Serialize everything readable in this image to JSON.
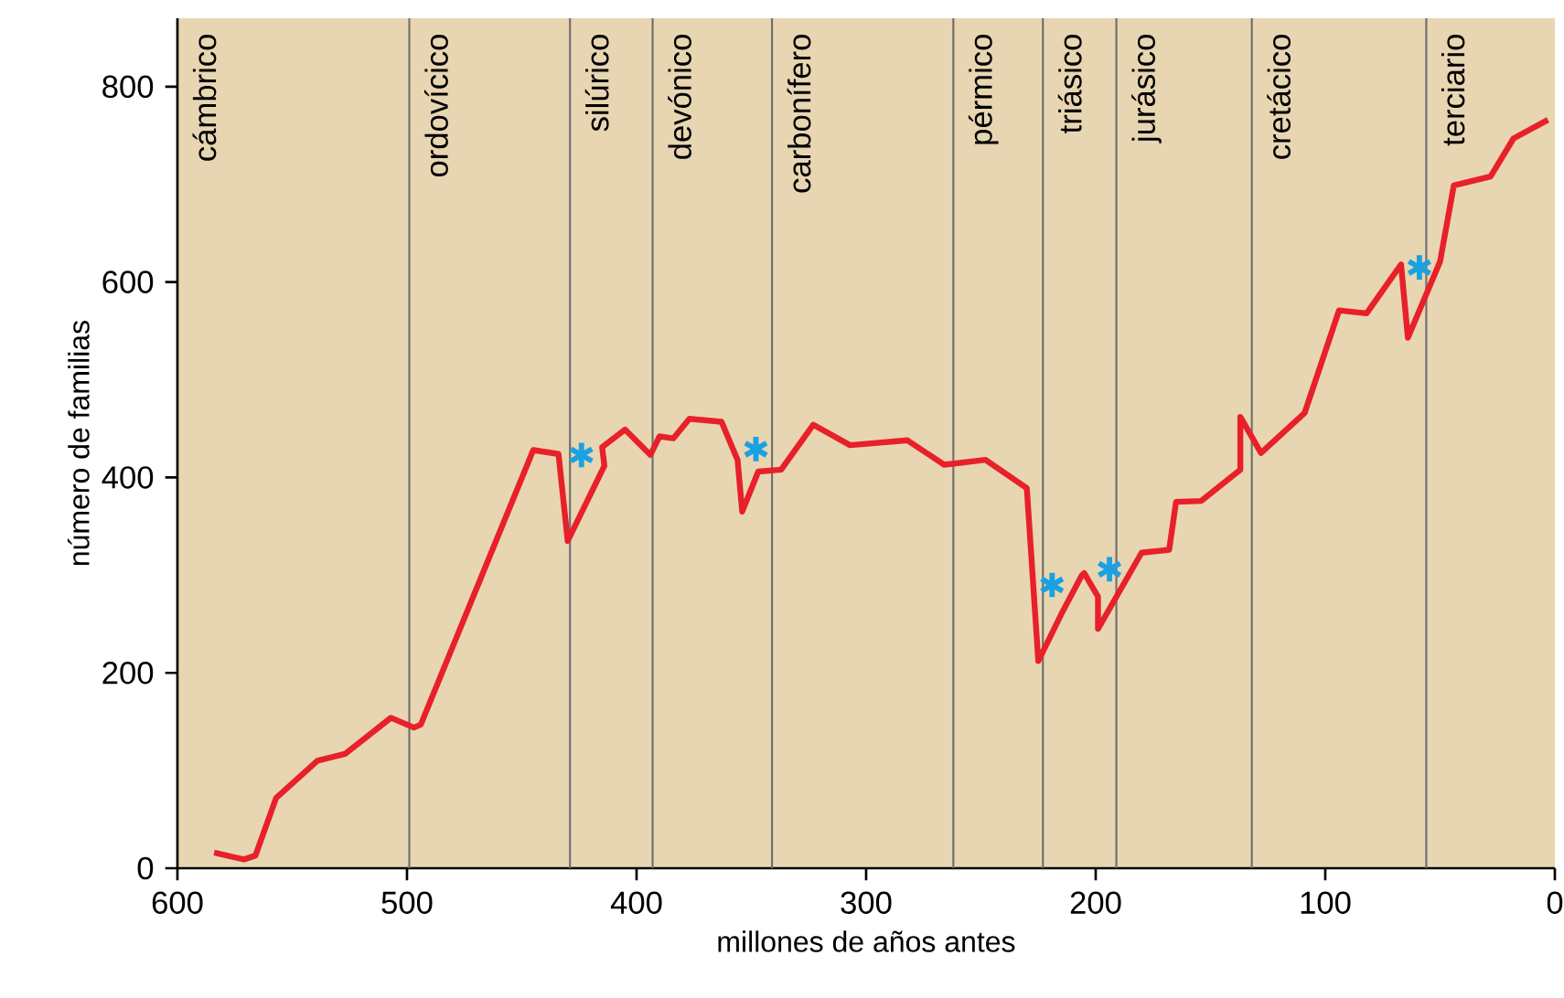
{
  "chart_data": {
    "type": "line",
    "xlabel": "millones de años antes",
    "ylabel": "número de familias",
    "xlim": [
      600,
      0
    ],
    "xticks": [
      600,
      500,
      400,
      300,
      200,
      100,
      0
    ],
    "ylim": [
      0,
      870
    ],
    "yticks": [
      0,
      200,
      400,
      600,
      800
    ],
    "series": [
      {
        "color": "#e8202a",
        "x": [
          584,
          571,
          566,
          557,
          539,
          527,
          507,
          497,
          494,
          445,
          434,
          430,
          414,
          415,
          405,
          394,
          390,
          384,
          377,
          363,
          356,
          354,
          347,
          337,
          323,
          307,
          282,
          266,
          248,
          230,
          225,
          215,
          206,
          205,
          199,
          199,
          180,
          168,
          165,
          154,
          137,
          137,
          128,
          109,
          94,
          82,
          67,
          64,
          50,
          44,
          28,
          18,
          3
        ],
        "values": [
          16,
          9,
          13,
          72,
          110,
          117,
          154,
          144,
          147,
          428,
          424,
          335,
          412,
          431,
          449,
          423,
          442,
          440,
          460,
          457,
          418,
          365,
          406,
          408,
          454,
          433,
          438,
          413,
          418,
          389,
          212,
          260,
          300,
          302,
          278,
          245,
          323,
          326,
          375,
          376,
          408,
          462,
          425,
          466,
          571,
          568,
          618,
          543,
          621,
          699,
          708,
          747,
          766
        ]
      },
      {
        "type": "scatter",
        "marker": "cross",
        "color": "#1ba1e2",
        "x": [
          424,
          348,
          219,
          194,
          59
        ],
        "values": [
          423,
          429,
          290,
          306,
          615
        ]
      }
    ],
    "annotations": [
      "cámbrico"
    ],
    "ref_lines": [
      {
        "axis": "x",
        "value": 499,
        "label": "ordovícico",
        "color": "#6e6e6e"
      },
      {
        "axis": "x",
        "value": 429,
        "label": "silúrico",
        "color": "#6e6e6e"
      },
      {
        "axis": "x",
        "value": 393,
        "label": "devónico",
        "color": "#6e6e6e"
      },
      {
        "axis": "x",
        "value": 341,
        "label": "carbonífero",
        "color": "#6e6e6e"
      },
      {
        "axis": "x",
        "value": 262,
        "label": "pérmico",
        "color": "#6e6e6e"
      },
      {
        "axis": "x",
        "value": 223,
        "label": "triásico",
        "color": "#6e6e6e"
      },
      {
        "axis": "x",
        "value": 191,
        "label": "jurásico",
        "color": "#6e6e6e"
      },
      {
        "axis": "x",
        "value": 132,
        "label": "cretácico",
        "color": "#6e6e6e"
      },
      {
        "axis": "x",
        "value": 56,
        "label": "terciario",
        "color": "#6e6e6e"
      }
    ]
  }
}
